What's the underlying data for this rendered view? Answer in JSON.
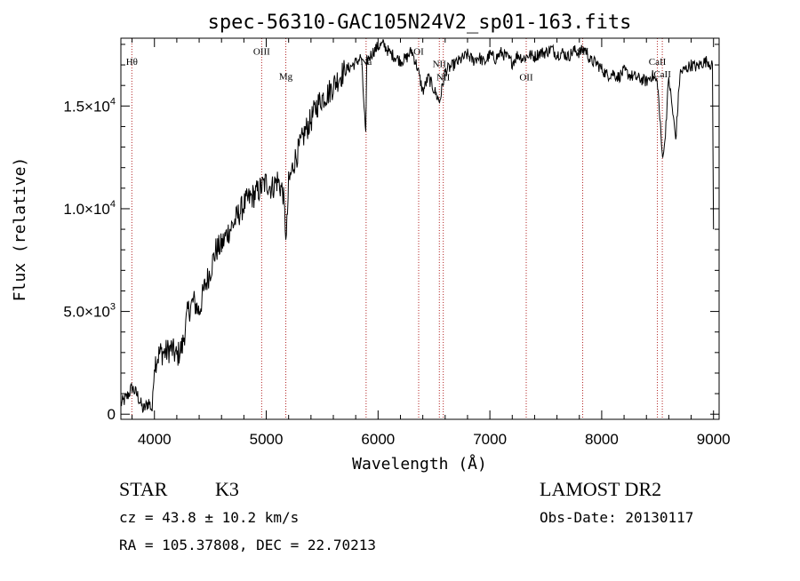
{
  "chart_data": {
    "type": "line",
    "title": "spec-56310-GAC105N24V2_sp01-163.fits",
    "xlabel": "Wavelength (Å)",
    "ylabel": "Flux (relative)",
    "xlim": [
      3700,
      9050
    ],
    "ylim": [
      -250,
      18300
    ],
    "xticks": [
      {
        "value": 4000,
        "label": "4000"
      },
      {
        "value": 5000,
        "label": "5000"
      },
      {
        "value": 6000,
        "label": "6000"
      },
      {
        "value": 7000,
        "label": "7000"
      },
      {
        "value": 8000,
        "label": "8000"
      },
      {
        "value": 9000,
        "label": "9000"
      }
    ],
    "yticks": [
      {
        "value": 0,
        "mant": "0",
        "exp": ""
      },
      {
        "value": 5000,
        "mant": "5.0×10",
        "exp": "3"
      },
      {
        "value": 10000,
        "mant": "1.0×10",
        "exp": "4"
      },
      {
        "value": 15000,
        "mant": "1.5×10",
        "exp": "4"
      }
    ],
    "grid": false,
    "series": [
      {
        "style": "black-line",
        "x": [
          3700,
          3750,
          3800,
          3850,
          3900,
          3950,
          3980,
          4000,
          4050,
          4100,
          4150,
          4200,
          4250,
          4300,
          4350,
          4400,
          4450,
          4500,
          4550,
          4600,
          4650,
          4700,
          4750,
          4800,
          4850,
          4900,
          4950,
          5000,
          5050,
          5100,
          5150,
          5180,
          5200,
          5250,
          5300,
          5350,
          5400,
          5450,
          5500,
          5550,
          5600,
          5650,
          5700,
          5750,
          5800,
          5850,
          5890,
          5900,
          5950,
          6000,
          6050,
          6100,
          6150,
          6200,
          6250,
          6300,
          6350,
          6400,
          6450,
          6500,
          6550,
          6600,
          6650,
          6700,
          6750,
          6800,
          6850,
          6900,
          6950,
          7000,
          7050,
          7100,
          7150,
          7200,
          7250,
          7300,
          7350,
          7400,
          7450,
          7500,
          7550,
          7600,
          7650,
          7700,
          7750,
          7800,
          7850,
          7900,
          7950,
          8000,
          8050,
          8100,
          8150,
          8200,
          8250,
          8300,
          8350,
          8400,
          8450,
          8500,
          8540,
          8560,
          8600,
          8662,
          8700,
          8750,
          8800,
          8850,
          8900,
          8950,
          8990,
          9000
        ],
        "y": [
          500,
          800,
          1300,
          900,
          200,
          600,
          200,
          2500,
          3000,
          3000,
          3200,
          2800,
          3300,
          5000,
          5500,
          5000,
          6200,
          7000,
          8000,
          8200,
          8800,
          9200,
          9700,
          10200,
          10500,
          10700,
          11000,
          11300,
          11000,
          11400,
          10800,
          8500,
          11200,
          12300,
          13000,
          13800,
          14300,
          15000,
          15400,
          15600,
          16000,
          16400,
          16700,
          16900,
          17100,
          17400,
          13500,
          17200,
          17600,
          17900,
          18000,
          17600,
          17400,
          17200,
          17300,
          17700,
          16900,
          15700,
          16400,
          15800,
          15200,
          16700,
          16900,
          17100,
          17300,
          17500,
          17200,
          17400,
          17100,
          17500,
          17300,
          17600,
          17400,
          17100,
          17500,
          17300,
          17500,
          17400,
          17600,
          17600,
          17800,
          17500,
          17600,
          17400,
          17700,
          17600,
          17800,
          17200,
          17100,
          16800,
          16500,
          16600,
          16400,
          16700,
          16500,
          16400,
          16300,
          16200,
          16500,
          16100,
          12700,
          12900,
          16400,
          13400,
          16600,
          16800,
          17000,
          16900,
          17100,
          17200,
          16900,
          9000
        ]
      }
    ],
    "lines": [
      {
        "name": "Hθ",
        "wavelength": 3798,
        "label_y": 17000
      },
      {
        "name": "OIII",
        "wavelength": 4959,
        "label_y": 17500
      },
      {
        "name": "Mg",
        "wavelength": 5175,
        "label_y": 16300
      },
      {
        "name": "Na",
        "wavelength": 5893,
        "label_y": 17000
      },
      {
        "name": "OI",
        "wavelength": 6363,
        "label_y": 17500
      },
      {
        "name": "NII",
        "wavelength": 6548,
        "label_y": 16900
      },
      {
        "name": "NII",
        "wavelength": 6583,
        "label_y": 16250
      },
      {
        "name": "OII",
        "wavelength": 7325,
        "label_y": 16250
      },
      {
        "name": "SII",
        "wavelength": 7830,
        "label_y": 17500
      },
      {
        "name": "CaII",
        "wavelength": 8498,
        "label_y": 17000
      },
      {
        "name": "CaII",
        "wavelength": 8542,
        "label_y": 16400
      }
    ]
  },
  "info": {
    "class": "STAR",
    "subclass": "K3",
    "survey": "LAMOST DR2",
    "cz": "cz = 43.8 ± 10.2 km/s",
    "obs_date": "Obs-Date: 20130117",
    "coords": "RA = 105.37808, DEC =  22.70213"
  },
  "colors": {
    "axes": "#000000",
    "spectrum": "#000000",
    "line_markers": "#b22222"
  }
}
